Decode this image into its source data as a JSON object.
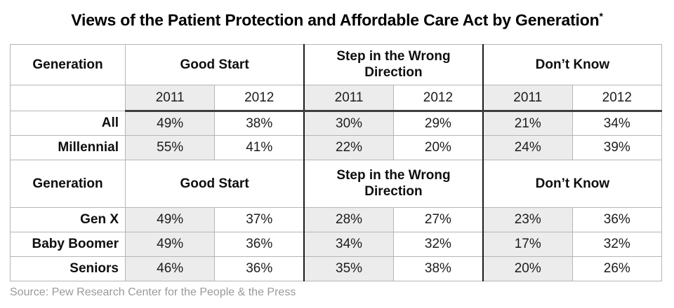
{
  "title": {
    "text": "Views of the Patient Protection and Affordable Care Act by Generation",
    "asterisk": "*"
  },
  "source": "Source: Pew Research Center for the People & the Press",
  "colors": {
    "shaded_column_bg": "#ececec",
    "grid_border": "#b5b5b5",
    "group_separator": "#1a1a1a",
    "header_underline": "#3d3d3d",
    "source_text": "#9a9a9a",
    "text": "#1c1c1c"
  },
  "table": {
    "header": {
      "generation": "Generation",
      "good_start": "Good Start",
      "wrong_direction": "Step in the Wrong Direction",
      "dont_know": "Don’t Know"
    },
    "years": [
      "2011",
      "2012",
      "2011",
      "2012",
      "2011",
      "2012"
    ],
    "rows_top": [
      {
        "label": "All",
        "values": [
          "49%",
          "38%",
          "30%",
          "29%",
          "21%",
          "34%"
        ]
      },
      {
        "label": "Millennial",
        "values": [
          "55%",
          "41%",
          "22%",
          "20%",
          "24%",
          "39%"
        ]
      }
    ],
    "rows_bottom": [
      {
        "label": "Gen X",
        "values": [
          "49%",
          "37%",
          "28%",
          "27%",
          "23%",
          "36%"
        ]
      },
      {
        "label": "Baby Boomer",
        "values": [
          "49%",
          "36%",
          "34%",
          "32%",
          "17%",
          "32%"
        ]
      },
      {
        "label": "Seniors",
        "values": [
          "46%",
          "36%",
          "35%",
          "38%",
          "20%",
          "26%"
        ]
      }
    ]
  },
  "chart_data": {
    "type": "table",
    "title": "Views of the Patient Protection and Affordable Care Act by Generation*",
    "categories": [
      "All",
      "Millennial",
      "Gen X",
      "Baby Boomer",
      "Seniors"
    ],
    "column_groups": [
      "Good Start",
      "Step in the Wrong Direction",
      "Don’t Know"
    ],
    "years": [
      "2011",
      "2012"
    ],
    "unit": "%",
    "series": [
      {
        "name": "Good Start 2011",
        "values": [
          49,
          55,
          49,
          49,
          46
        ]
      },
      {
        "name": "Good Start 2012",
        "values": [
          38,
          41,
          37,
          36,
          36
        ]
      },
      {
        "name": "Step in the Wrong Direction 2011",
        "values": [
          30,
          22,
          28,
          34,
          35
        ]
      },
      {
        "name": "Step in the Wrong Direction 2012",
        "values": [
          29,
          20,
          27,
          32,
          38
        ]
      },
      {
        "name": "Don’t Know 2011",
        "values": [
          21,
          24,
          23,
          17,
          20
        ]
      },
      {
        "name": "Don’t Know 2012",
        "values": [
          34,
          39,
          36,
          32,
          26
        ]
      }
    ],
    "layout": {
      "shaded_columns": "2011 columns have light gray background",
      "header_repeated_mid_table": true,
      "legend": "none",
      "grid": "on"
    },
    "source": "Source: Pew Research Center for the People & the Press"
  }
}
